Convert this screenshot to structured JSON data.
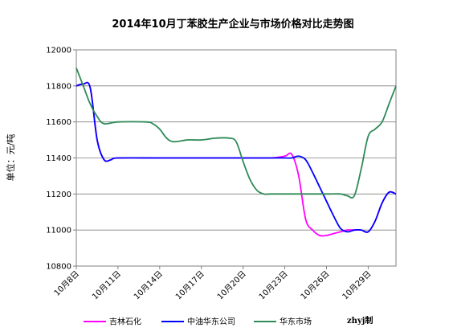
{
  "chart_data": {
    "type": "line",
    "title": "2014年10月丁苯胶生产企业与市场价格对比走势图",
    "ylabel": "单位：元/吨",
    "ylim": [
      10800,
      12000
    ],
    "yticks": [
      10800,
      11000,
      11200,
      11400,
      11600,
      11800,
      12000
    ],
    "xlim": [
      0,
      23
    ],
    "x_tick_positions": [
      0,
      3,
      6,
      9,
      12,
      15,
      18,
      21
    ],
    "x_tick_labels": [
      "10月8日",
      "10月11日",
      "10月14日",
      "10月17日",
      "10月20日",
      "10月23日",
      "10月26日",
      "10月29日"
    ],
    "grid": "y-major",
    "legend_position": "bottom",
    "credit": "zhyj制",
    "series": [
      {
        "name": "吉林石化",
        "color": "#ff00ff",
        "points": [
          [
            0,
            11800
          ],
          [
            0.5,
            11810
          ],
          [
            1,
            11790
          ],
          [
            1.5,
            11500
          ],
          [
            2,
            11390
          ],
          [
            2.5,
            11390
          ],
          [
            3,
            11400
          ],
          [
            6,
            11400
          ],
          [
            9,
            11400
          ],
          [
            12,
            11400
          ],
          [
            14,
            11400
          ],
          [
            15,
            11410
          ],
          [
            15.5,
            11420
          ],
          [
            16,
            11300
          ],
          [
            16.5,
            11060
          ],
          [
            17,
            11000
          ],
          [
            17.5,
            10970
          ],
          [
            18,
            10970
          ],
          [
            18.5,
            10980
          ],
          [
            19,
            10990
          ],
          [
            19.5,
            11000
          ],
          [
            20,
            11000
          ],
          [
            20.5,
            11000
          ],
          [
            21,
            10990
          ],
          [
            21.5,
            11050
          ],
          [
            22,
            11150
          ],
          [
            22.5,
            11210
          ],
          [
            23,
            11200
          ]
        ]
      },
      {
        "name": "中油华东公司",
        "color": "#0000ff",
        "points": [
          [
            0,
            11800
          ],
          [
            0.5,
            11810
          ],
          [
            1,
            11790
          ],
          [
            1.5,
            11500
          ],
          [
            2,
            11390
          ],
          [
            2.5,
            11390
          ],
          [
            3,
            11400
          ],
          [
            6,
            11400
          ],
          [
            9,
            11400
          ],
          [
            12,
            11400
          ],
          [
            15,
            11400
          ],
          [
            15.5,
            11400
          ],
          [
            16,
            11410
          ],
          [
            16.5,
            11390
          ],
          [
            17,
            11320
          ],
          [
            17.5,
            11240
          ],
          [
            18,
            11160
          ],
          [
            18.5,
            11080
          ],
          [
            19,
            11010
          ],
          [
            19.5,
            10990
          ],
          [
            20,
            11000
          ],
          [
            20.5,
            11000
          ],
          [
            21,
            10990
          ],
          [
            21.5,
            11050
          ],
          [
            22,
            11150
          ],
          [
            22.5,
            11210
          ],
          [
            23,
            11200
          ]
        ]
      },
      {
        "name": "华东市场",
        "color": "#2e8b57",
        "points": [
          [
            0,
            11900
          ],
          [
            0.5,
            11800
          ],
          [
            1,
            11700
          ],
          [
            1.5,
            11630
          ],
          [
            2,
            11590
          ],
          [
            3,
            11600
          ],
          [
            5,
            11600
          ],
          [
            5.5,
            11590
          ],
          [
            6,
            11560
          ],
          [
            6.5,
            11510
          ],
          [
            7,
            11490
          ],
          [
            8,
            11500
          ],
          [
            9,
            11500
          ],
          [
            10,
            11510
          ],
          [
            11,
            11510
          ],
          [
            11.5,
            11490
          ],
          [
            12,
            11380
          ],
          [
            12.5,
            11280
          ],
          [
            13,
            11220
          ],
          [
            13.5,
            11200
          ],
          [
            14,
            11200
          ],
          [
            16,
            11200
          ],
          [
            18,
            11200
          ],
          [
            19,
            11200
          ],
          [
            19.5,
            11190
          ],
          [
            20,
            11190
          ],
          [
            20.5,
            11340
          ],
          [
            21,
            11520
          ],
          [
            21.5,
            11560
          ],
          [
            22,
            11600
          ],
          [
            22.5,
            11700
          ],
          [
            23,
            11800
          ]
        ]
      }
    ]
  }
}
